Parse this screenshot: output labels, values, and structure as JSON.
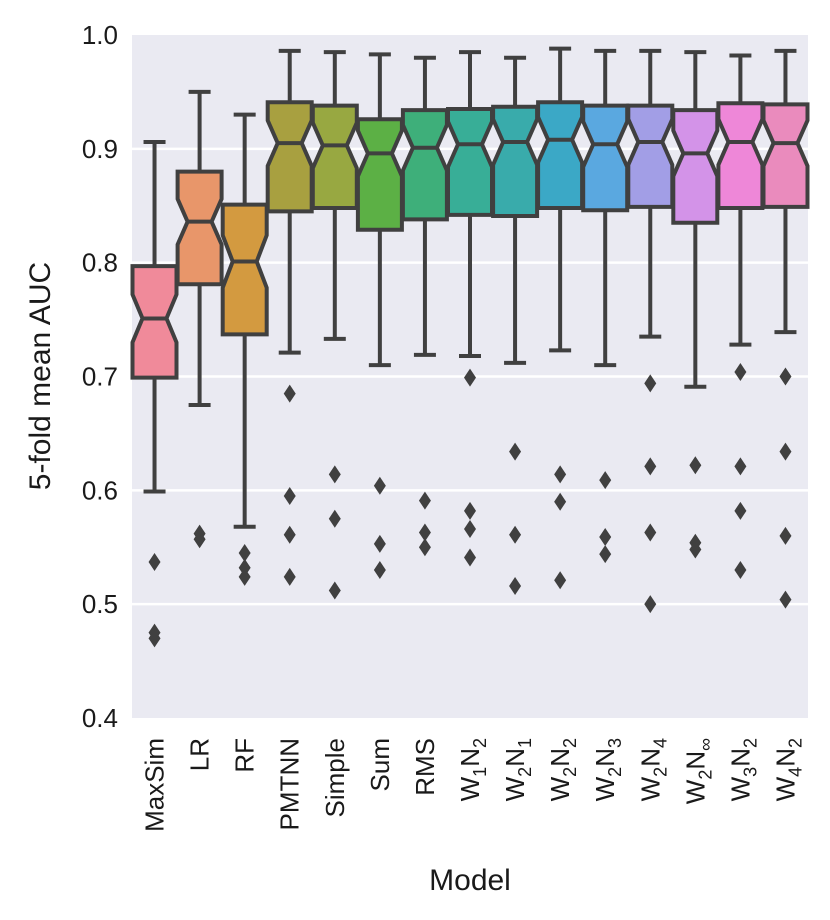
{
  "chart_data": {
    "type": "boxplot",
    "notched": true,
    "title": "",
    "xlabel": "Model",
    "ylabel": "5-fold mean AUC",
    "ylim": [
      0.4,
      1.0
    ],
    "yticks": [
      "0.4",
      "0.5",
      "0.6",
      "0.7",
      "0.8",
      "0.9",
      "1.0"
    ],
    "grid": true,
    "categories": [
      {
        "label": "MaxSim",
        "sub": null
      },
      {
        "label": "LR",
        "sub": null
      },
      {
        "label": "RF",
        "sub": null
      },
      {
        "label": "PMTNN",
        "sub": null
      },
      {
        "label": "Simple",
        "sub": null
      },
      {
        "label": "Sum",
        "sub": null
      },
      {
        "label": "RMS",
        "sub": null
      },
      {
        "label": "W",
        "sub": [
          "1",
          "2"
        ]
      },
      {
        "label": "W",
        "sub": [
          "2",
          "1"
        ]
      },
      {
        "label": "W",
        "sub": [
          "2",
          "2"
        ]
      },
      {
        "label": "W",
        "sub": [
          "2",
          "3"
        ]
      },
      {
        "label": "W",
        "sub": [
          "2",
          "4"
        ]
      },
      {
        "label": "W",
        "sub": [
          "2",
          "∞"
        ]
      },
      {
        "label": "W",
        "sub": [
          "3",
          "2"
        ]
      },
      {
        "label": "W",
        "sub": [
          "4",
          "2"
        ]
      }
    ],
    "colors": [
      "#f08a9a",
      "#e8966a",
      "#d39a40",
      "#a8a040",
      "#98a841",
      "#5cb045",
      "#3eaf7a",
      "#38ae97",
      "#39abab",
      "#3ba8c6",
      "#5aa8e0",
      "#a29ee6",
      "#d393e8",
      "#ee87d8",
      "#ea8bbd"
    ],
    "boxes": [
      {
        "whislo": 0.599,
        "q1": 0.699,
        "med": 0.751,
        "q3": 0.797,
        "whishi": 0.906,
        "notch": [
          0.73,
          0.772
        ],
        "fliers": [
          0.537,
          0.475,
          0.47
        ]
      },
      {
        "whislo": 0.675,
        "q1": 0.781,
        "med": 0.836,
        "q3": 0.88,
        "whishi": 0.95,
        "notch": [
          0.816,
          0.856
        ],
        "fliers": [
          0.562,
          0.557
        ]
      },
      {
        "whislo": 0.568,
        "q1": 0.737,
        "med": 0.801,
        "q3": 0.851,
        "whishi": 0.93,
        "notch": [
          0.778,
          0.824
        ],
        "fliers": [
          0.545,
          0.532,
          0.524
        ]
      },
      {
        "whislo": 0.721,
        "q1": 0.845,
        "med": 0.905,
        "q3": 0.941,
        "whishi": 0.986,
        "notch": [
          0.885,
          0.925
        ],
        "fliers": [
          0.685,
          0.595,
          0.561,
          0.524
        ]
      },
      {
        "whislo": 0.733,
        "q1": 0.848,
        "med": 0.903,
        "q3": 0.938,
        "whishi": 0.985,
        "notch": [
          0.883,
          0.923
        ],
        "fliers": [
          0.614,
          0.575,
          0.512
        ]
      },
      {
        "whislo": 0.71,
        "q1": 0.829,
        "med": 0.896,
        "q3": 0.926,
        "whishi": 0.983,
        "notch": [
          0.876,
          0.916
        ],
        "fliers": [
          0.604,
          0.553,
          0.53
        ]
      },
      {
        "whislo": 0.719,
        "q1": 0.838,
        "med": 0.901,
        "q3": 0.934,
        "whishi": 0.98,
        "notch": [
          0.881,
          0.921
        ],
        "fliers": [
          0.591,
          0.563,
          0.55
        ]
      },
      {
        "whislo": 0.718,
        "q1": 0.842,
        "med": 0.904,
        "q3": 0.935,
        "whishi": 0.985,
        "notch": [
          0.884,
          0.924
        ],
        "fliers": [
          0.699,
          0.582,
          0.566,
          0.541
        ]
      },
      {
        "whislo": 0.712,
        "q1": 0.841,
        "med": 0.906,
        "q3": 0.937,
        "whishi": 0.98,
        "notch": [
          0.886,
          0.926
        ],
        "fliers": [
          0.634,
          0.561,
          0.516
        ]
      },
      {
        "whislo": 0.723,
        "q1": 0.848,
        "med": 0.908,
        "q3": 0.941,
        "whishi": 0.988,
        "notch": [
          0.888,
          0.928
        ],
        "fliers": [
          0.614,
          0.59,
          0.521
        ]
      },
      {
        "whislo": 0.71,
        "q1": 0.846,
        "med": 0.904,
        "q3": 0.938,
        "whishi": 0.986,
        "notch": [
          0.884,
          0.924
        ],
        "fliers": [
          0.609,
          0.559,
          0.544
        ]
      },
      {
        "whislo": 0.735,
        "q1": 0.849,
        "med": 0.906,
        "q3": 0.938,
        "whishi": 0.986,
        "notch": [
          0.886,
          0.926
        ],
        "fliers": [
          0.694,
          0.621,
          0.563,
          0.5
        ]
      },
      {
        "whislo": 0.691,
        "q1": 0.835,
        "med": 0.896,
        "q3": 0.934,
        "whishi": 0.985,
        "notch": [
          0.876,
          0.916
        ],
        "fliers": [
          0.622,
          0.554,
          0.548
        ]
      },
      {
        "whislo": 0.728,
        "q1": 0.848,
        "med": 0.906,
        "q3": 0.94,
        "whishi": 0.982,
        "notch": [
          0.886,
          0.926
        ],
        "fliers": [
          0.704,
          0.621,
          0.582,
          0.53
        ]
      },
      {
        "whislo": 0.739,
        "q1": 0.849,
        "med": 0.905,
        "q3": 0.939,
        "whishi": 0.986,
        "notch": [
          0.885,
          0.925
        ],
        "fliers": [
          0.7,
          0.634,
          0.56,
          0.504
        ]
      }
    ]
  }
}
